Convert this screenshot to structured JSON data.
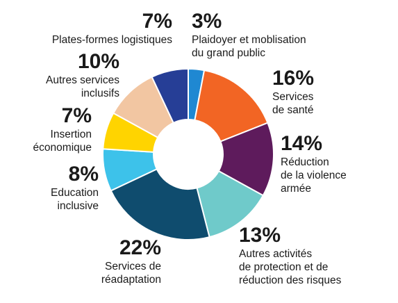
{
  "chart_data": {
    "type": "donut",
    "categories": [
      "Plaidoyer et moblisation\ndu grand public",
      "Services\nde santé",
      "Réduction\nde la violence\narmée",
      "Autres activités\nde protection et de\nréduction des risques",
      "Services de\nréadaptation",
      "Education\ninclusive",
      "Insertion\néconomique",
      "Autres services\ninclusifs",
      "Plates-formes logistiques"
    ],
    "values": [
      3,
      16,
      14,
      13,
      22,
      8,
      7,
      10,
      7
    ],
    "value_labels": [
      "3%",
      "16%",
      "14%",
      "13%",
      "22%",
      "8%",
      "7%",
      "10%",
      "7%"
    ],
    "colors": [
      "#1f88d2",
      "#f26524",
      "#5e1b5c",
      "#6fcaca",
      "#0f4c6e",
      "#3dc2ea",
      "#ffd400",
      "#f2c6a2",
      "#263e96"
    ]
  }
}
